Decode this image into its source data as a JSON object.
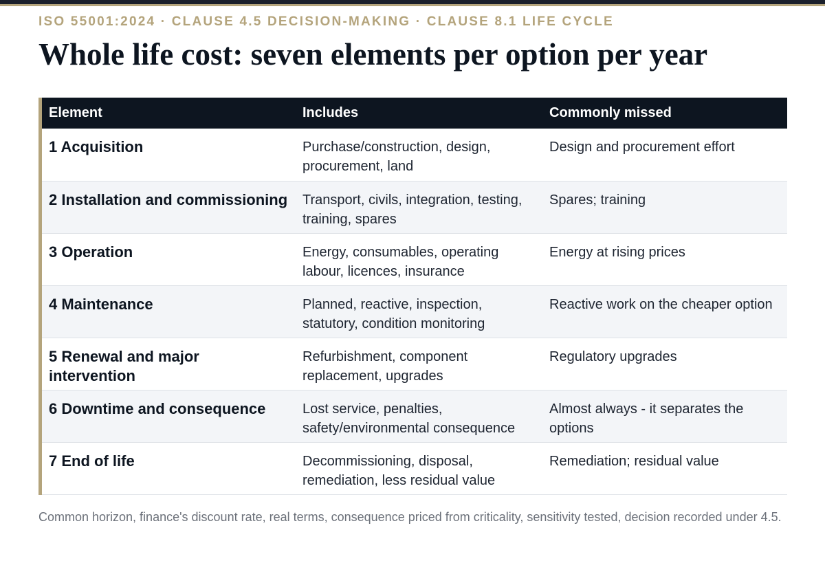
{
  "header": {
    "kicker": "ISO 55001:2024 · CLAUSE 4.5 DECISION-MAKING · CLAUSE 8.1 LIFE CYCLE",
    "title": "Whole life cost: seven elements per option per year"
  },
  "colors": {
    "accent": "#b4a47c",
    "header_bg": "#0d1520",
    "stripe": "#f3f5f8"
  },
  "table": {
    "columns": [
      "Element",
      "Includes",
      "Commonly missed"
    ],
    "rows": [
      {
        "element": "1 Acquisition",
        "includes": "Purchase/construction, design, procurement, land",
        "missed": "Design and procurement effort"
      },
      {
        "element": "2 Installation and commissioning",
        "includes": "Transport, civils, integration, testing, training, spares",
        "missed": "Spares; training"
      },
      {
        "element": "3 Operation",
        "includes": "Energy, consumables, operating labour, licences, insurance",
        "missed": "Energy at rising prices"
      },
      {
        "element": "4 Maintenance",
        "includes": "Planned, reactive, inspection, statutory, condition monitoring",
        "missed": "Reactive work on the cheaper option"
      },
      {
        "element": "5 Renewal and major intervention",
        "includes": "Refurbishment, component replacement, upgrades",
        "missed": "Regulatory upgrades"
      },
      {
        "element": "6 Downtime and consequence",
        "includes": "Lost service, penalties, safety/environmental consequence",
        "missed": "Almost always - it separates the options"
      },
      {
        "element": "7 End of life",
        "includes": "Decommissioning, disposal, remediation, less residual value",
        "missed": "Remediation; residual value"
      }
    ]
  },
  "footnote": "Common horizon, finance's discount rate, real terms, consequence priced from criticality, sensitivity tested, decision recorded under 4.5."
}
